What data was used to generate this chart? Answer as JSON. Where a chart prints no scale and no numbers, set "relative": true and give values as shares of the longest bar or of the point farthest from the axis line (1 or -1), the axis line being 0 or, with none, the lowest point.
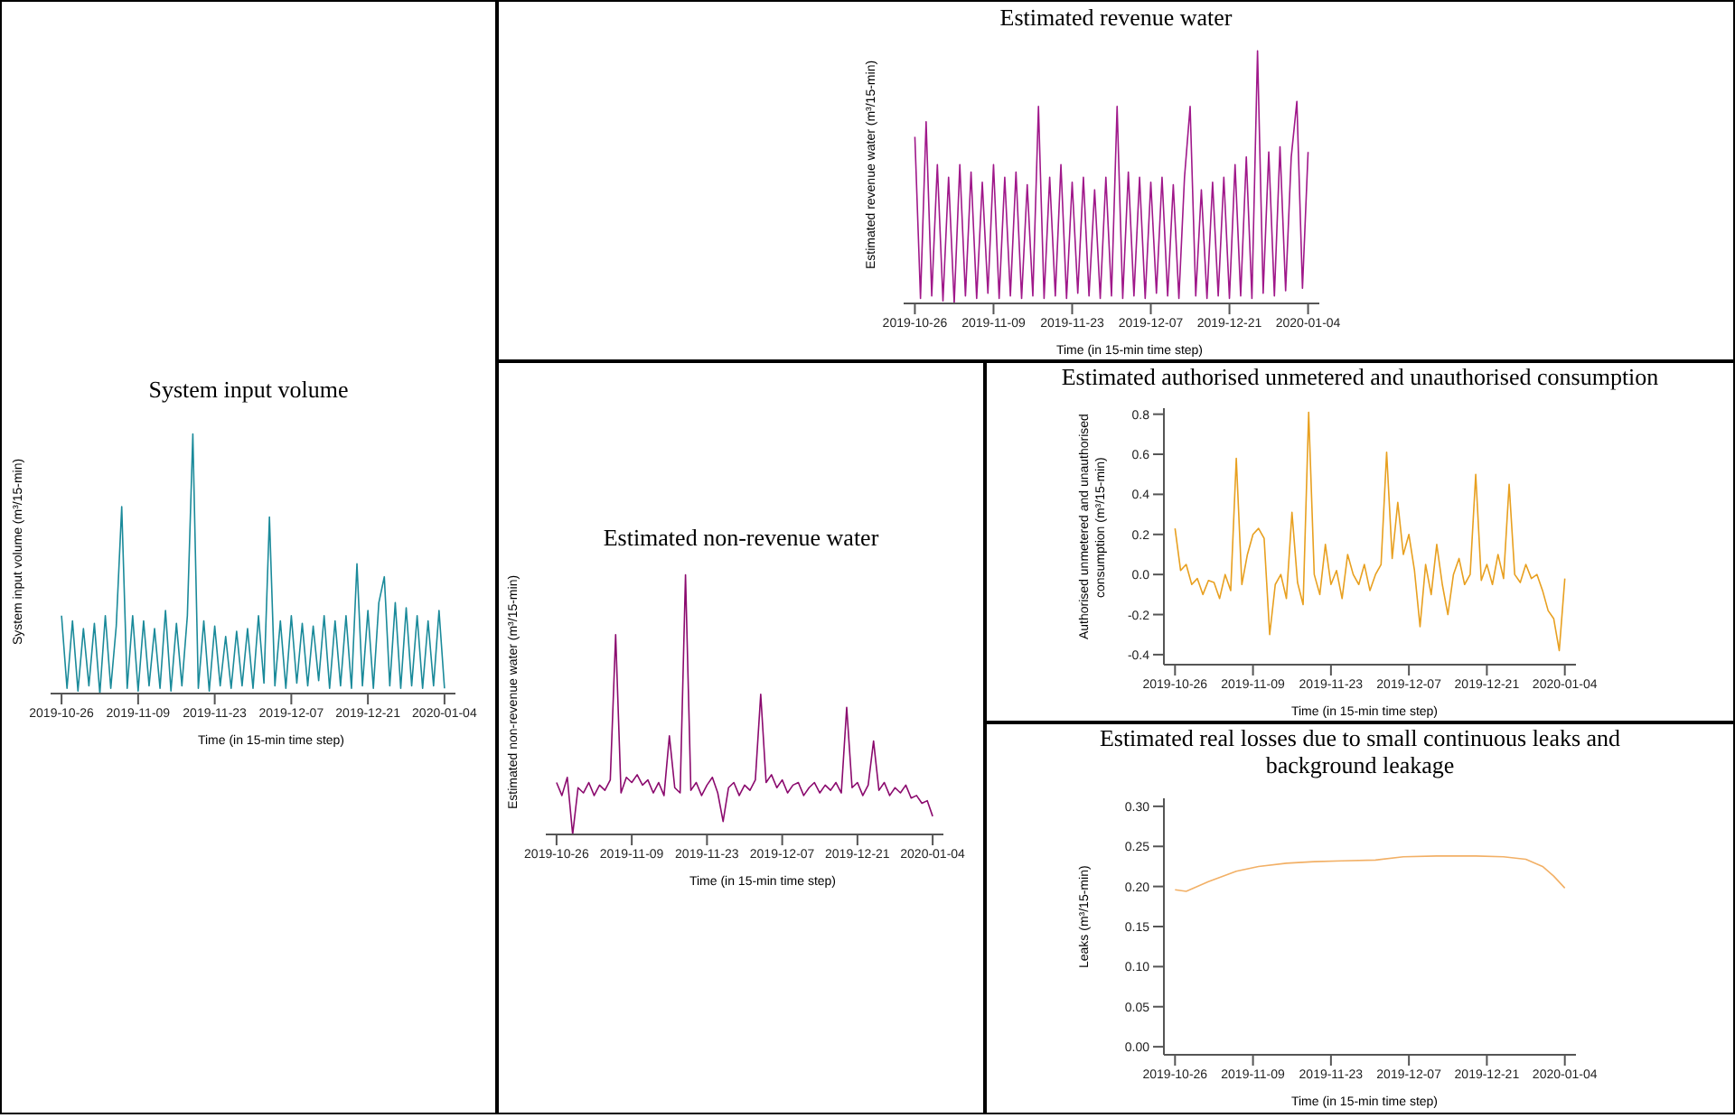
{
  "chart_data": [
    {
      "type": "line",
      "title": "System input volume",
      "xlabel": "Time (in 15-min time step)",
      "ylabel": "System input volume (m³/15-min)",
      "relative": true,
      "xlim": [
        "2019-10-24",
        "2020-01-06"
      ],
      "xticks": [
        "2019-10-26",
        "2019-11-09",
        "2019-11-23",
        "2019-12-07",
        "2019-12-21",
        "2020-01-04"
      ],
      "x": [
        "2019-10-26",
        "2019-10-27",
        "2019-10-28",
        "2019-10-29",
        "2019-10-30",
        "2019-10-31",
        "2019-11-01",
        "2019-11-02",
        "2019-11-03",
        "2019-11-04",
        "2019-11-05",
        "2019-11-06",
        "2019-11-07",
        "2019-11-08",
        "2019-11-09",
        "2019-11-10",
        "2019-11-11",
        "2019-11-12",
        "2019-11-13",
        "2019-11-14",
        "2019-11-15",
        "2019-11-16",
        "2019-11-17",
        "2019-11-18",
        "2019-11-19",
        "2019-11-20",
        "2019-11-21",
        "2019-11-22",
        "2019-11-23",
        "2019-11-24",
        "2019-11-25",
        "2019-11-26",
        "2019-11-27",
        "2019-11-28",
        "2019-11-29",
        "2019-11-30",
        "2019-12-01",
        "2019-12-02",
        "2019-12-03",
        "2019-12-04",
        "2019-12-05",
        "2019-12-06",
        "2019-12-07",
        "2019-12-08",
        "2019-12-09",
        "2019-12-10",
        "2019-12-11",
        "2019-12-12",
        "2019-12-13",
        "2019-12-14",
        "2019-12-15",
        "2019-12-16",
        "2019-12-17",
        "2019-12-18",
        "2019-12-19",
        "2019-12-20",
        "2019-12-21",
        "2019-12-22",
        "2019-12-23",
        "2019-12-24",
        "2019-12-25",
        "2019-12-26",
        "2019-12-27",
        "2019-12-28",
        "2019-12-29",
        "2019-12-30",
        "2019-12-31",
        "2020-01-01",
        "2020-01-02",
        "2020-01-03",
        "2020-01-04"
      ],
      "series": [
        {
          "color": "#1a8a9a",
          "values": [
            0.3,
            0.02,
            0.28,
            0.01,
            0.25,
            0.03,
            0.27,
            0.0,
            0.3,
            0.02,
            0.26,
            0.72,
            0.02,
            0.3,
            0.01,
            0.28,
            0.03,
            0.25,
            0.02,
            0.32,
            0.01,
            0.27,
            0.03,
            0.3,
            1.0,
            0.02,
            0.28,
            0.01,
            0.26,
            0.03,
            0.22,
            0.02,
            0.24,
            0.03,
            0.25,
            0.02,
            0.3,
            0.04,
            0.68,
            0.03,
            0.28,
            0.02,
            0.3,
            0.04,
            0.27,
            0.03,
            0.26,
            0.05,
            0.3,
            0.02,
            0.28,
            0.03,
            0.3,
            0.02,
            0.5,
            0.03,
            0.32,
            0.02,
            0.35,
            0.45,
            0.03,
            0.35,
            0.02,
            0.33,
            0.03,
            0.3,
            0.02,
            0.28,
            0.03,
            0.32,
            0.02
          ]
        }
      ]
    },
    {
      "type": "line",
      "title": "Estimated revenue water",
      "xlabel": "Time (in 15-min time step)",
      "ylabel": "Estimated revenue water (m³/15-min)",
      "relative": true,
      "xlim": [
        "2019-10-24",
        "2020-01-06"
      ],
      "xticks": [
        "2019-10-26",
        "2019-11-09",
        "2019-11-23",
        "2019-12-07",
        "2019-12-21",
        "2020-01-04"
      ],
      "x": [
        "2019-10-26",
        "2019-10-27",
        "2019-10-28",
        "2019-10-29",
        "2019-10-30",
        "2019-10-31",
        "2019-11-01",
        "2019-11-02",
        "2019-11-03",
        "2019-11-04",
        "2019-11-05",
        "2019-11-06",
        "2019-11-07",
        "2019-11-08",
        "2019-11-09",
        "2019-11-10",
        "2019-11-11",
        "2019-11-12",
        "2019-11-13",
        "2019-11-14",
        "2019-11-15",
        "2019-11-16",
        "2019-11-17",
        "2019-11-18",
        "2019-11-19",
        "2019-11-20",
        "2019-11-21",
        "2019-11-22",
        "2019-11-23",
        "2019-11-24",
        "2019-11-25",
        "2019-11-26",
        "2019-11-27",
        "2019-11-28",
        "2019-11-29",
        "2019-11-30",
        "2019-12-01",
        "2019-12-02",
        "2019-12-03",
        "2019-12-04",
        "2019-12-05",
        "2019-12-06",
        "2019-12-07",
        "2019-12-08",
        "2019-12-09",
        "2019-12-10",
        "2019-12-11",
        "2019-12-12",
        "2019-12-13",
        "2019-12-14",
        "2019-12-15",
        "2019-12-16",
        "2019-12-17",
        "2019-12-18",
        "2019-12-19",
        "2019-12-20",
        "2019-12-21",
        "2019-12-22",
        "2019-12-23",
        "2019-12-24",
        "2019-12-25",
        "2019-12-26",
        "2019-12-27",
        "2019-12-28",
        "2019-12-29",
        "2019-12-30",
        "2019-12-31",
        "2020-01-01",
        "2020-01-02",
        "2020-01-03",
        "2020-01-04"
      ],
      "series": [
        {
          "color": "#a0188a",
          "values": [
            0.66,
            0.02,
            0.72,
            0.03,
            0.55,
            0.01,
            0.5,
            0.0,
            0.55,
            0.03,
            0.52,
            0.02,
            0.48,
            0.04,
            0.55,
            0.02,
            0.5,
            0.03,
            0.52,
            0.02,
            0.47,
            0.03,
            0.78,
            0.02,
            0.5,
            0.03,
            0.55,
            0.02,
            0.48,
            0.04,
            0.5,
            0.03,
            0.45,
            0.02,
            0.5,
            0.03,
            0.78,
            0.02,
            0.52,
            0.03,
            0.5,
            0.02,
            0.48,
            0.04,
            0.5,
            0.03,
            0.47,
            0.02,
            0.5,
            0.78,
            0.03,
            0.45,
            0.02,
            0.48,
            0.03,
            0.5,
            0.02,
            0.55,
            0.03,
            0.58,
            0.02,
            1.0,
            0.04,
            0.6,
            0.03,
            0.62,
            0.05,
            0.58,
            0.8,
            0.06,
            0.6
          ]
        }
      ]
    },
    {
      "type": "line",
      "title": "Estimated non-revenue water",
      "xlabel": "Time (in 15-min time step)",
      "ylabel": "Estimated non-revenue water (m³/15-min)",
      "relative": true,
      "xlim": [
        "2019-10-24",
        "2020-01-06"
      ],
      "xticks": [
        "2019-10-26",
        "2019-11-09",
        "2019-11-23",
        "2019-12-07",
        "2019-12-21",
        "2020-01-04"
      ],
      "x": [
        "2019-10-26",
        "2019-10-27",
        "2019-10-28",
        "2019-10-29",
        "2019-10-30",
        "2019-10-31",
        "2019-11-01",
        "2019-11-02",
        "2019-11-03",
        "2019-11-04",
        "2019-11-05",
        "2019-11-06",
        "2019-11-07",
        "2019-11-08",
        "2019-11-09",
        "2019-11-10",
        "2019-11-11",
        "2019-11-12",
        "2019-11-13",
        "2019-11-14",
        "2019-11-15",
        "2019-11-16",
        "2019-11-17",
        "2019-11-18",
        "2019-11-19",
        "2019-11-20",
        "2019-11-21",
        "2019-11-22",
        "2019-11-23",
        "2019-11-24",
        "2019-11-25",
        "2019-11-26",
        "2019-11-27",
        "2019-11-28",
        "2019-11-29",
        "2019-11-30",
        "2019-12-01",
        "2019-12-02",
        "2019-12-03",
        "2019-12-04",
        "2019-12-05",
        "2019-12-06",
        "2019-12-07",
        "2019-12-08",
        "2019-12-09",
        "2019-12-10",
        "2019-12-11",
        "2019-12-12",
        "2019-12-13",
        "2019-12-14",
        "2019-12-15",
        "2019-12-16",
        "2019-12-17",
        "2019-12-18",
        "2019-12-19",
        "2019-12-20",
        "2019-12-21",
        "2019-12-22",
        "2019-12-23",
        "2019-12-24",
        "2019-12-25",
        "2019-12-26",
        "2019-12-27",
        "2019-12-28",
        "2019-12-29",
        "2019-12-30",
        "2019-12-31",
        "2020-01-01",
        "2020-01-02",
        "2020-01-03",
        "2020-01-04"
      ],
      "series": [
        {
          "color": "#8b0a6e",
          "values": [
            0.2,
            0.15,
            0.22,
            0.0,
            0.18,
            0.16,
            0.2,
            0.15,
            0.19,
            0.17,
            0.21,
            0.77,
            0.16,
            0.22,
            0.2,
            0.23,
            0.19,
            0.21,
            0.16,
            0.2,
            0.15,
            0.38,
            0.18,
            0.16,
            1.0,
            0.17,
            0.2,
            0.15,
            0.19,
            0.22,
            0.16,
            0.05,
            0.18,
            0.2,
            0.15,
            0.19,
            0.17,
            0.21,
            0.54,
            0.2,
            0.23,
            0.18,
            0.21,
            0.16,
            0.19,
            0.2,
            0.15,
            0.18,
            0.2,
            0.16,
            0.19,
            0.17,
            0.2,
            0.16,
            0.49,
            0.18,
            0.2,
            0.15,
            0.19,
            0.36,
            0.17,
            0.2,
            0.15,
            0.18,
            0.16,
            0.19,
            0.14,
            0.15,
            0.12,
            0.13,
            0.07
          ]
        }
      ]
    },
    {
      "type": "line",
      "title": "Estimated authorised unmetered and unauthorised consumption",
      "xlabel": "Time (in 15-min time step)",
      "ylabel": "Authorised unmetered and unauthorised consumption (m³/15-min)",
      "xlim": [
        "2019-10-24",
        "2020-01-06"
      ],
      "xticks": [
        "2019-10-26",
        "2019-11-09",
        "2019-11-23",
        "2019-12-07",
        "2019-12-21",
        "2020-01-04"
      ],
      "ylim": [
        -0.45,
        0.83
      ],
      "yticks": [
        -0.4,
        -0.2,
        {
          "value": 0,
          "label": "0.0"
        },
        0.2,
        0.4,
        0.6,
        0.8
      ],
      "x": [
        "2019-10-26",
        "2019-10-27",
        "2019-10-28",
        "2019-10-29",
        "2019-10-30",
        "2019-10-31",
        "2019-11-01",
        "2019-11-02",
        "2019-11-03",
        "2019-11-04",
        "2019-11-05",
        "2019-11-06",
        "2019-11-07",
        "2019-11-08",
        "2019-11-09",
        "2019-11-10",
        "2019-11-11",
        "2019-11-12",
        "2019-11-13",
        "2019-11-14",
        "2019-11-15",
        "2019-11-16",
        "2019-11-17",
        "2019-11-18",
        "2019-11-19",
        "2019-11-20",
        "2019-11-21",
        "2019-11-22",
        "2019-11-23",
        "2019-11-24",
        "2019-11-25",
        "2019-11-26",
        "2019-11-27",
        "2019-11-28",
        "2019-11-29",
        "2019-11-30",
        "2019-12-01",
        "2019-12-02",
        "2019-12-03",
        "2019-12-04",
        "2019-12-05",
        "2019-12-06",
        "2019-12-07",
        "2019-12-08",
        "2019-12-09",
        "2019-12-10",
        "2019-12-11",
        "2019-12-12",
        "2019-12-13",
        "2019-12-14",
        "2019-12-15",
        "2019-12-16",
        "2019-12-17",
        "2019-12-18",
        "2019-12-19",
        "2019-12-20",
        "2019-12-21",
        "2019-12-22",
        "2019-12-23",
        "2019-12-24",
        "2019-12-25",
        "2019-12-26",
        "2019-12-27",
        "2019-12-28",
        "2019-12-29",
        "2019-12-30",
        "2019-12-31",
        "2020-01-01",
        "2020-01-02",
        "2020-01-03",
        "2020-01-04"
      ],
      "series": [
        {
          "color": "#e8a020",
          "values": [
            0.23,
            0.02,
            0.05,
            -0.05,
            -0.02,
            -0.1,
            -0.03,
            -0.04,
            -0.12,
            0.0,
            -0.08,
            0.58,
            -0.05,
            0.1,
            0.2,
            0.23,
            0.18,
            -0.3,
            -0.05,
            0.0,
            -0.12,
            0.31,
            -0.04,
            -0.15,
            0.81,
            0.0,
            -0.1,
            0.15,
            -0.05,
            0.02,
            -0.12,
            0.1,
            0.0,
            -0.05,
            0.05,
            -0.08,
            0.0,
            0.05,
            0.61,
            0.08,
            0.36,
            0.1,
            0.2,
            0.02,
            -0.26,
            0.05,
            -0.1,
            0.15,
            -0.05,
            -0.2,
            0.0,
            0.08,
            -0.05,
            0.0,
            0.5,
            -0.03,
            0.05,
            -0.05,
            0.1,
            -0.02,
            0.45,
            0.0,
            -0.04,
            0.05,
            -0.02,
            0.0,
            -0.08,
            -0.18,
            -0.22,
            -0.38,
            -0.02
          ]
        }
      ]
    },
    {
      "type": "line",
      "title": "Estimated real losses due to small continuous leaks and background leakage",
      "xlabel": "Time (in 15-min time step)",
      "ylabel": "Leaks (m³/15-min)",
      "xlim": [
        "2019-10-24",
        "2020-01-06"
      ],
      "xticks": [
        "2019-10-26",
        "2019-11-09",
        "2019-11-23",
        "2019-12-07",
        "2019-12-21",
        "2020-01-04"
      ],
      "ylim": [
        -0.01,
        0.31
      ],
      "yticks": [
        {
          "value": 0,
          "label": "0.00"
        },
        {
          "value": 0.05,
          "label": "0.05"
        },
        {
          "value": 0.1,
          "label": "0.10"
        },
        {
          "value": 0.15,
          "label": "0.15"
        },
        {
          "value": 0.2,
          "label": "0.20"
        },
        {
          "value": 0.25,
          "label": "0.25"
        },
        {
          "value": 0.3,
          "label": "0.30"
        }
      ],
      "x": [
        "2019-10-26",
        "2019-10-28",
        "2019-11-01",
        "2019-11-06",
        "2019-11-10",
        "2019-11-15",
        "2019-11-20",
        "2019-11-25",
        "2019-12-01",
        "2019-12-06",
        "2019-12-12",
        "2019-12-19",
        "2019-12-24",
        "2019-12-28",
        "2019-12-31",
        "2020-01-02",
        "2020-01-04"
      ],
      "series": [
        {
          "color": "#f2b066",
          "values": [
            0.196,
            0.194,
            0.206,
            0.219,
            0.225,
            0.229,
            0.231,
            0.232,
            0.233,
            0.237,
            0.238,
            0.238,
            0.237,
            0.234,
            0.225,
            0.213,
            0.198
          ]
        }
      ]
    }
  ]
}
